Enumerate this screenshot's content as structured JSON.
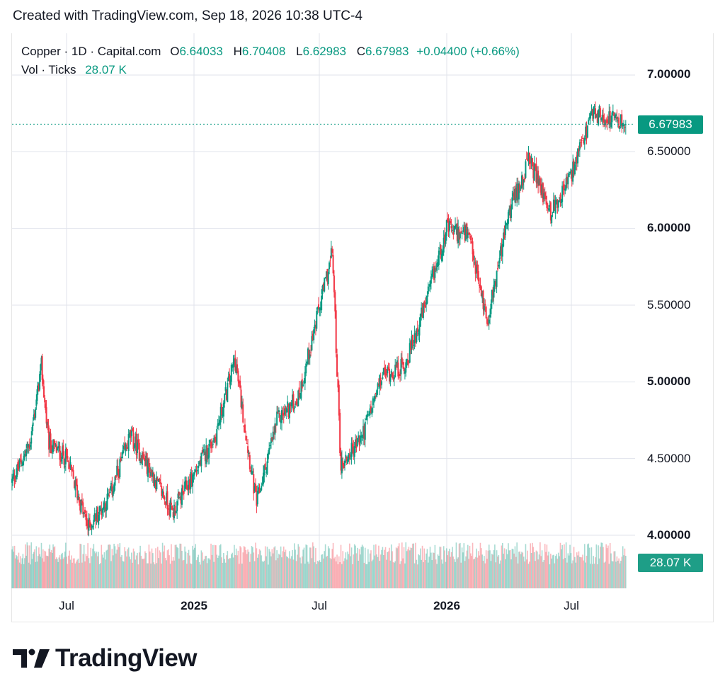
{
  "header": {
    "text": "Created with TradingView.com, Sep 18, 2026 10:38 UTC-4"
  },
  "legend": {
    "symbol": "Copper · 1D · Capital.com",
    "open_label": "O",
    "open": "6.64033",
    "high_label": "H",
    "high": "6.70408",
    "low_label": "L",
    "low": "6.62983",
    "close_label": "C",
    "close": "6.67983",
    "change": "+0.04400 (+0.66%)",
    "vol_label": "Vol · Ticks",
    "vol_value": "28.07 K"
  },
  "price_tag": "6.67983",
  "volume_tag": "28.07 K",
  "y_ticks": [
    "7.00000",
    "6.50000",
    "6.00000",
    "5.50000",
    "5.00000",
    "4.50000",
    "4.00000"
  ],
  "x_ticks": [
    "Jul",
    "2025",
    "Jul",
    "2026",
    "Jul"
  ],
  "brand": "TradingView",
  "colors": {
    "up": "#089981",
    "down": "#f23645",
    "grid": "#e0e3eb",
    "last_price_line": "#089981"
  },
  "chart_data": {
    "type": "candlestick",
    "instrument": "Copper · 1D · Capital.com",
    "y_range": [
      3.9,
      7.2
    ],
    "y_ticks": [
      4.0,
      4.5,
      5.0,
      5.5,
      6.0,
      6.5,
      7.0
    ],
    "last_close": 6.67983,
    "volume_last": "28.07 K",
    "grid": true,
    "approx_close_path": [
      {
        "date": "2024-04",
        "close": 4.35
      },
      {
        "date": "2024-05",
        "close": 4.6
      },
      {
        "date": "2024-05-20",
        "close": 5.1
      },
      {
        "date": "2024-06",
        "close": 4.6
      },
      {
        "date": "2024-07",
        "close": 4.5
      },
      {
        "date": "2024-08",
        "close": 4.05
      },
      {
        "date": "2024-09",
        "close": 4.25
      },
      {
        "date": "2024-10",
        "close": 4.65
      },
      {
        "date": "2024-11",
        "close": 4.4
      },
      {
        "date": "2024-12",
        "close": 4.15
      },
      {
        "date": "2025-01",
        "close": 4.4
      },
      {
        "date": "2025-02",
        "close": 4.65
      },
      {
        "date": "2025-03",
        "close": 5.15
      },
      {
        "date": "2025-04",
        "close": 4.2
      },
      {
        "date": "2025-05",
        "close": 4.75
      },
      {
        "date": "2025-06",
        "close": 4.9
      },
      {
        "date": "2025-07-20",
        "close": 5.85
      },
      {
        "date": "2025-08",
        "close": 4.45
      },
      {
        "date": "2025-09",
        "close": 4.65
      },
      {
        "date": "2025-10",
        "close": 5.05
      },
      {
        "date": "2025-11",
        "close": 5.1
      },
      {
        "date": "2025-12",
        "close": 5.5
      },
      {
        "date": "2026-01",
        "close": 6.0
      },
      {
        "date": "2026-02",
        "close": 5.95
      },
      {
        "date": "2026-03",
        "close": 5.4
      },
      {
        "date": "2026-04",
        "close": 6.1
      },
      {
        "date": "2026-05",
        "close": 6.45
      },
      {
        "date": "2026-06",
        "close": 6.1
      },
      {
        "date": "2026-07",
        "close": 6.35
      },
      {
        "date": "2026-08",
        "close": 6.75
      },
      {
        "date": "2026-09-18",
        "close": 6.67983
      }
    ]
  }
}
